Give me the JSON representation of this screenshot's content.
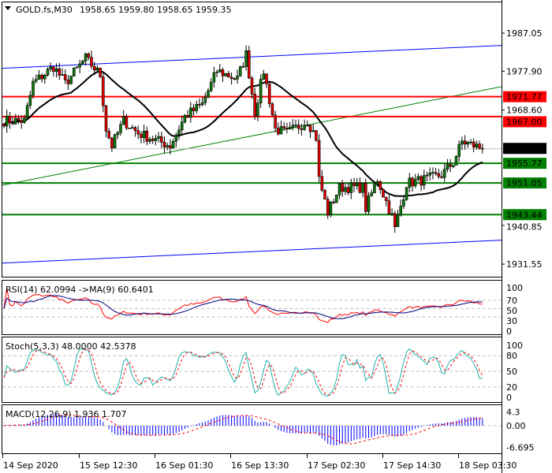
{
  "header": {
    "symbol_label": "GOLD.fs,M30",
    "ohlc": "1958.65 1959.80 1958.65 1959.35"
  },
  "colors": {
    "bull": "#0b7a0b",
    "bear": "#e00000",
    "support": "#008000",
    "resistance": "#ff0000",
    "channel": "#0000ff",
    "trend": "#008000",
    "ma": "#000000",
    "rsi": "#ff0000",
    "rsi_ma": "#000080",
    "stoch_main": "#20b2aa",
    "stoch_signal": "#ff0000",
    "macd_hist": "#0000ff",
    "macd_signal": "#ff0000"
  },
  "chart_data": [
    {
      "type": "candlestick",
      "title": "GOLD.fs,M30",
      "timeframe": "M30",
      "bars": 165,
      "close_path": [
        [
          0,
          1966
        ],
        [
          7,
          1966
        ],
        [
          10,
          1975
        ],
        [
          17,
          1979
        ],
        [
          21,
          1975
        ],
        [
          28,
          1981
        ],
        [
          33,
          1977
        ],
        [
          35,
          1964
        ],
        [
          37,
          1960
        ],
        [
          41,
          1966
        ],
        [
          46,
          1963
        ],
        [
          57,
          1960
        ],
        [
          62,
          1967
        ],
        [
          68,
          1970
        ],
        [
          73,
          1978
        ],
        [
          80,
          1976
        ],
        [
          83,
          1982
        ],
        [
          86,
          1968
        ],
        [
          89,
          1978
        ],
        [
          93,
          1964
        ],
        [
          97,
          1963
        ],
        [
          104,
          1966
        ],
        [
          107,
          1962
        ],
        [
          108,
          1952
        ],
        [
          111,
          1944
        ],
        [
          115,
          1950
        ],
        [
          123,
          1950
        ],
        [
          124,
          1945
        ],
        [
          128,
          1952
        ],
        [
          133,
          1943
        ],
        [
          134,
          1940
        ],
        [
          138,
          1951
        ],
        [
          145,
          1952
        ],
        [
          150,
          1953
        ],
        [
          154,
          1956
        ],
        [
          157,
          1961
        ],
        [
          164,
          1959.35
        ]
      ],
      "last_price": 1959.35,
      "ma_period": 24,
      "y_ticks": [
        "1987.05",
        "1977.90",
        "1968.60",
        "1940.85",
        "1931.55"
      ],
      "ylim": [
        1925.5,
        1995.0
      ],
      "levels": [
        {
          "value": 1971.77,
          "label": "1971.77",
          "kind": "resistance"
        },
        {
          "value": 1967.0,
          "label": "1967.00",
          "kind": "resistance"
        },
        {
          "value": 1955.77,
          "label": "1955.77",
          "kind": "support"
        },
        {
          "value": 1951.05,
          "label": "1951.05",
          "kind": "support"
        },
        {
          "value": 1943.44,
          "label": "1943.44",
          "kind": "support"
        }
      ],
      "current_label": "1959.35",
      "channel_upper": [
        1978.6,
        1984.1
      ],
      "channel_lower": [
        1931.8,
        1937.3
      ],
      "trendline": [
        1950.5,
        1974.2
      ]
    },
    {
      "type": "line",
      "title": "RSI(14) 62.0994  ->MA(9) 60.6401",
      "ylim": [
        0,
        100
      ],
      "levels": [
        70,
        50,
        30
      ],
      "y_ticks": [
        "100",
        "70",
        "50",
        "30",
        "0"
      ]
    },
    {
      "type": "line",
      "title": "Stoch(5,3,3) 48.0000 42.5378",
      "ylim": [
        0,
        100
      ],
      "levels": [
        80,
        50,
        20
      ],
      "y_ticks": [
        "100",
        "80",
        "50",
        "20",
        "0"
      ]
    },
    {
      "type": "bar",
      "title": "MACD(12,26,9) 1.936 1.707",
      "ylim": [
        -6.695,
        4.3
      ],
      "y_ticks": [
        "4.3",
        "0.00",
        "-6.695"
      ]
    }
  ],
  "x_axis": {
    "labels": [
      "14 Sep 2020",
      "15 Sep 12:30",
      "16 Sep 01:30",
      "16 Sep 13:30",
      "17 Sep 02:30",
      "17 Sep 14:30",
      "18 Sep 03:30"
    ]
  }
}
